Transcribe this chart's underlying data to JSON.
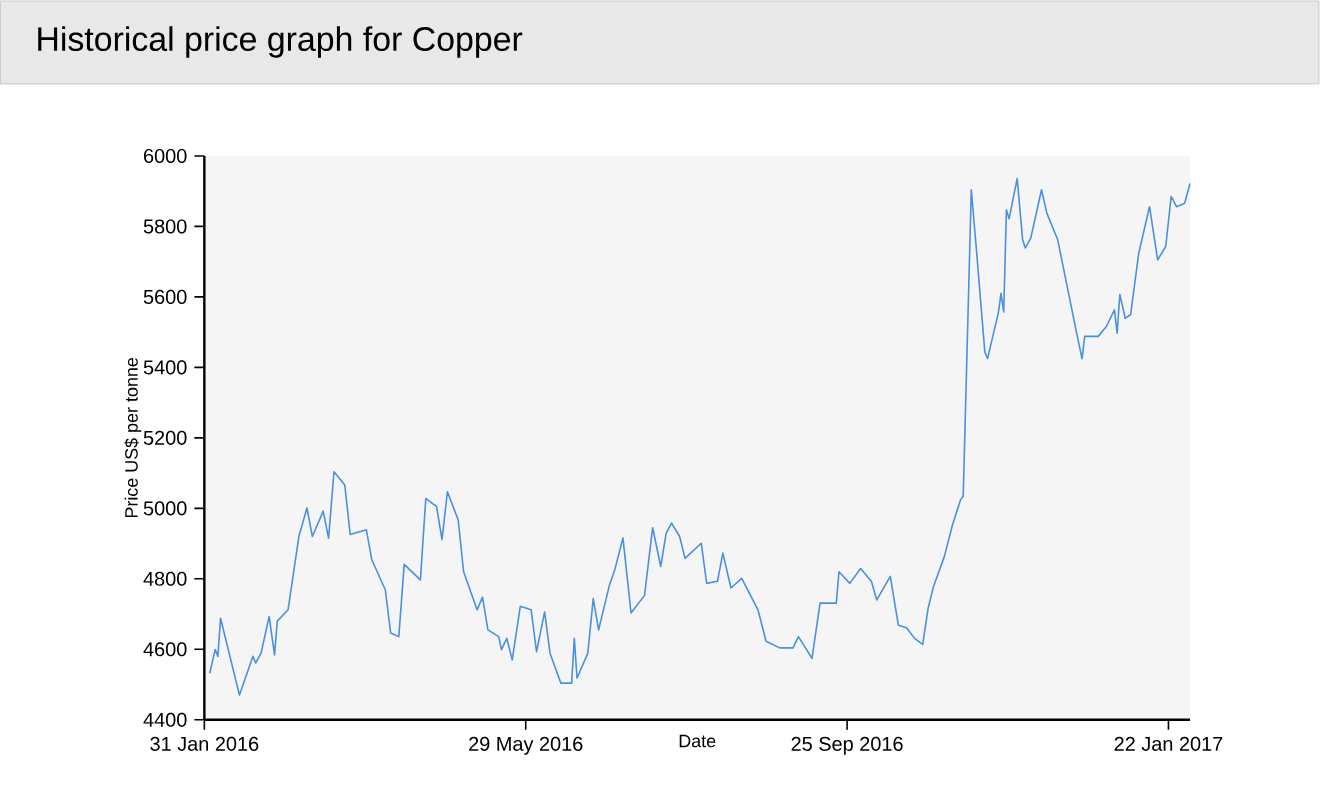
{
  "chart_data": {
    "type": "line",
    "title": "Historical price graph for Copper",
    "xlabel": "Date",
    "ylabel": "Price US$ per tonne",
    "color": "#4a8fe0",
    "xlim": [
      "2016-01-31",
      "2017-01-30"
    ],
    "ylim": [
      4400,
      6000
    ],
    "xticks": [
      {
        "value": "2016-01-31",
        "label": "31 Jan 2016"
      },
      {
        "value": "2016-05-29",
        "label": "29 May 2016"
      },
      {
        "value": "2016-09-25",
        "label": "25 Sep 2016"
      },
      {
        "value": "2017-01-22",
        "label": "22 Jan 2017"
      }
    ],
    "yticks": [
      4400,
      4600,
      4800,
      5000,
      5200,
      5400,
      5600,
      5800,
      6000
    ],
    "x": [
      "2016-02-02",
      "2016-02-04",
      "2016-02-05",
      "2016-02-06",
      "2016-02-13",
      "2016-02-18",
      "2016-02-19",
      "2016-02-21",
      "2016-02-24",
      "2016-02-26",
      "2016-02-27",
      "2016-03-02",
      "2016-03-06",
      "2016-03-09",
      "2016-03-11",
      "2016-03-15",
      "2016-03-17",
      "2016-03-19",
      "2016-03-23",
      "2016-03-25",
      "2016-03-31",
      "2016-04-02",
      "2016-04-07",
      "2016-04-09",
      "2016-04-12",
      "2016-04-14",
      "2016-04-20",
      "2016-04-22",
      "2016-04-26",
      "2016-04-28",
      "2016-04-30",
      "2016-05-04",
      "2016-05-06",
      "2016-05-11",
      "2016-05-13",
      "2016-05-15",
      "2016-05-19",
      "2016-05-20",
      "2016-05-22",
      "2016-05-24",
      "2016-05-27",
      "2016-05-31",
      "2016-06-02",
      "2016-06-05",
      "2016-06-07",
      "2016-06-11",
      "2016-06-15",
      "2016-06-16",
      "2016-06-17",
      "2016-06-21",
      "2016-06-23",
      "2016-06-25",
      "2016-06-29",
      "2016-07-01",
      "2016-07-04",
      "2016-07-07",
      "2016-07-12",
      "2016-07-15",
      "2016-07-18",
      "2016-07-20",
      "2016-07-22",
      "2016-07-25",
      "2016-07-27",
      "2016-08-02",
      "2016-08-04",
      "2016-08-08",
      "2016-08-10",
      "2016-08-13",
      "2016-08-17",
      "2016-08-23",
      "2016-08-26",
      "2016-08-31",
      "2016-09-05",
      "2016-09-07",
      "2016-09-12",
      "2016-09-15",
      "2016-09-21",
      "2016-09-22",
      "2016-09-26",
      "2016-09-30",
      "2016-10-04",
      "2016-10-06",
      "2016-10-11",
      "2016-10-14",
      "2016-10-17",
      "2016-10-20",
      "2016-10-23",
      "2016-10-25",
      "2016-10-27",
      "2016-10-31",
      "2016-11-03",
      "2016-11-06",
      "2016-11-07",
      "2016-11-10",
      "2016-11-12",
      "2016-11-15",
      "2016-11-16",
      "2016-11-20",
      "2016-11-21",
      "2016-11-22",
      "2016-11-23",
      "2016-11-24",
      "2016-11-27",
      "2016-11-29",
      "2016-11-30",
      "2016-12-02",
      "2016-12-06",
      "2016-12-08",
      "2016-12-12",
      "2016-12-17",
      "2016-12-19",
      "2016-12-21",
      "2016-12-22",
      "2016-12-27",
      "2016-12-30",
      "2017-01-02",
      "2017-01-03",
      "2017-01-04",
      "2017-01-06",
      "2017-01-08",
      "2017-01-11",
      "2017-01-15",
      "2017-01-18",
      "2017-01-21",
      "2017-01-23",
      "2017-01-25",
      "2017-01-28",
      "2017-01-30"
    ],
    "values": [
      4532,
      4599,
      4580,
      4688,
      4470,
      4580,
      4561,
      4589,
      4693,
      4584,
      4680,
      4712,
      4920,
      5001,
      4920,
      4992,
      4915,
      5104,
      5066,
      4926,
      4939,
      4854,
      4769,
      4646,
      4636,
      4841,
      4797,
      5028,
      5005,
      4911,
      5047,
      4967,
      4820,
      4712,
      4748,
      4655,
      4636,
      4599,
      4631,
      4570,
      4722,
      4712,
      4593,
      4706,
      4589,
      4504,
      4504,
      4631,
      4518,
      4589,
      4744,
      4655,
      4782,
      4826,
      4916,
      4703,
      4753,
      4945,
      4835,
      4929,
      4958,
      4920,
      4858,
      4901,
      4787,
      4793,
      4873,
      4774,
      4801,
      4712,
      4623,
      4604,
      4604,
      4636,
      4574,
      4731,
      4731,
      4820,
      4787,
      4829,
      4793,
      4740,
      4807,
      4668,
      4661,
      4631,
      4614,
      4716,
      4778,
      4863,
      4952,
      5024,
      5034,
      5904,
      5724,
      5444,
      5425,
      5554,
      5610,
      5557,
      5847,
      5822,
      5936,
      5762,
      5739,
      5766,
      5904,
      5837,
      5762,
      5573,
      5497,
      5425,
      5488,
      5488,
      5516,
      5563,
      5497,
      5607,
      5539,
      5550,
      5724,
      5856,
      5705,
      5743,
      5885,
      5856,
      5866,
      5922
    ]
  }
}
